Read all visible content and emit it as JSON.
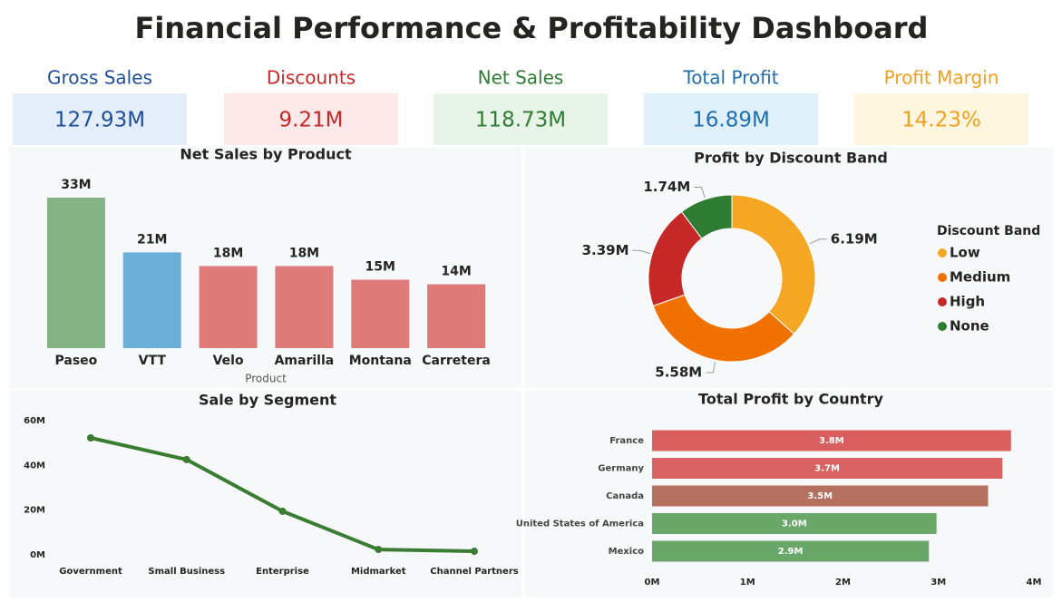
{
  "header": {
    "title": "Financial Performance & Profitability Dashboard"
  },
  "kpis": [
    {
      "label": "Gross Sales",
      "value": "127.93M",
      "color": "#1f4e9a",
      "background": "#e3eefa"
    },
    {
      "label": "Discounts",
      "value": "9.21M",
      "color": "#c62828",
      "background": "#fde9e9"
    },
    {
      "label": "Net Sales",
      "value": "118.73M",
      "color": "#2e7d32",
      "background": "#e7f4e7"
    },
    {
      "label": "Total Profit",
      "value": "16.89M",
      "color": "#1f6fb0",
      "background": "#e0f0fb"
    },
    {
      "label": "Profit Margin",
      "value": "14.23%",
      "color": "#f0a020",
      "background": "#fff6e0"
    }
  ],
  "chart_data": [
    {
      "type": "bar",
      "title": "Net Sales by Product",
      "x_label": "Product",
      "categories": [
        "Paseo",
        "VTT",
        "Velo",
        "Amarilla",
        "Montana",
        "Carretera"
      ],
      "values": [
        33,
        21,
        18,
        18,
        15,
        14
      ],
      "value_labels": [
        "33M",
        "21M",
        "18M",
        "18M",
        "15M",
        "14M"
      ],
      "colors": [
        "#86b386",
        "#6baed6",
        "#e07b7b",
        "#e07b7b",
        "#e07b7b",
        "#e07b7b"
      ]
    },
    {
      "type": "pie",
      "donut": true,
      "title": "Profit by Discount Band",
      "legend_title": "Discount Band",
      "legend": "right",
      "categories": [
        "Low",
        "Medium",
        "High",
        "None"
      ],
      "values": [
        6.19,
        5.58,
        3.39,
        1.74
      ],
      "value_labels": [
        "6.19M",
        "5.58M",
        "3.39M",
        "1.74M"
      ],
      "colors": [
        "#f5a623",
        "#f07000",
        "#c62828",
        "#2e7d32"
      ]
    },
    {
      "type": "line",
      "title": "Sale by Segment",
      "categories": [
        "Government",
        "Small Business",
        "Enterprise",
        "Midmarket",
        "Channel Partners"
      ],
      "values": [
        52.3,
        42.6,
        19.5,
        2.4,
        1.6
      ],
      "color": "#3a7d32",
      "ylim": [
        0,
        60
      ],
      "yticks": [
        {
          "value": 0,
          "label": "0M"
        },
        {
          "value": 20,
          "label": "20M"
        },
        {
          "value": 40,
          "label": "40M"
        },
        {
          "value": 60,
          "label": "60M"
        }
      ]
    },
    {
      "type": "hbar",
      "title": "Total Profit by Country",
      "categories": [
        "France",
        "Germany",
        "Canada",
        "United States of America",
        "Mexico"
      ],
      "values": [
        3.76,
        3.67,
        3.52,
        2.98,
        2.9
      ],
      "value_labels": [
        "3.8M",
        "3.7M",
        "3.5M",
        "3.0M",
        "2.9M"
      ],
      "colors": [
        "#d95f5f",
        "#d96262",
        "#b5705f",
        "#6aa86a",
        "#6aa86a"
      ],
      "xlim": [
        0,
        4
      ],
      "xticks": [
        {
          "value": 0,
          "label": "0M"
        },
        {
          "value": 1,
          "label": "1M"
        },
        {
          "value": 2,
          "label": "2M"
        },
        {
          "value": 3,
          "label": "3M"
        },
        {
          "value": 4,
          "label": "4M"
        }
      ]
    }
  ]
}
